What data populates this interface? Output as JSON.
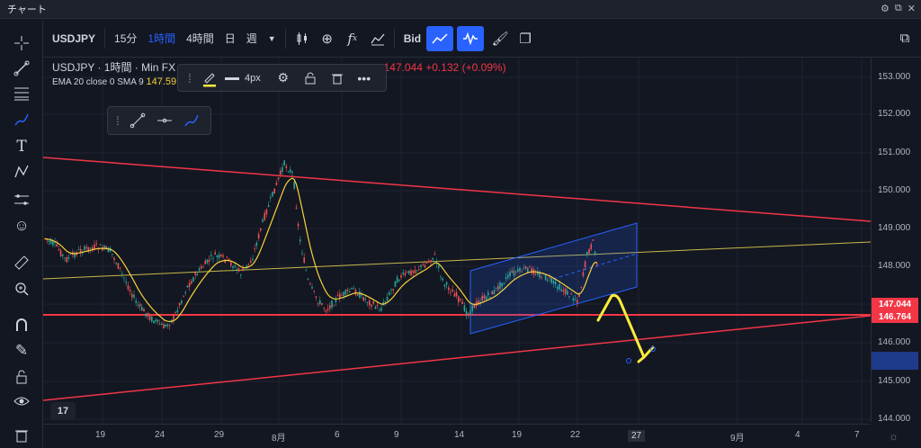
{
  "window": {
    "title": "チャート"
  },
  "toolbar": {
    "symbol": "USDJPY",
    "intervals": [
      "15分",
      "1時間",
      "4時間",
      "日",
      "週"
    ],
    "active_interval_index": 1,
    "price_source": "Bid"
  },
  "legend": {
    "line1": "USDJPY · 1時間 · Min FX",
    "ohlc_change": "147.044 +0.132 (+0.09%)",
    "ema_label": "EMA 20 close 0 SMA 9",
    "ema_value": "147.59"
  },
  "float_toolbar": {
    "width_label": "4px"
  },
  "y_axis": {
    "labels": [
      "153.000",
      "152.000",
      "151.000",
      "150.000",
      "149.000",
      "148.000",
      "147.000",
      "146.000",
      "145.000",
      "144.000"
    ],
    "price_tags": [
      {
        "value": "147.044",
        "color": "#f23645"
      },
      {
        "value": "146.764",
        "color": "#f23645"
      }
    ]
  },
  "x_axis": {
    "labels": [
      "19",
      "24",
      "29",
      "8月",
      "6",
      "9",
      "14",
      "19",
      "22",
      "27",
      "9月",
      "4",
      "7"
    ],
    "highlighted_label": "27"
  },
  "colors": {
    "background": "#131722",
    "accent": "#2962ff",
    "trendline_red": "#f23645",
    "ema_yellow": "#f7d13a",
    "channel_blue": "#2962ff",
    "arrow_yellow": "#ffeb3b"
  },
  "icons": {
    "left": [
      "crosshair-icon",
      "trendline-icon",
      "fib-icon",
      "brush-icon",
      "text-icon",
      "pattern-icon",
      "projection-icon",
      "emoji-icon",
      "ruler-icon",
      "zoom-icon",
      "magnet-icon",
      "lock-drawing-icon",
      "lock-icon",
      "eye-icon",
      "trash-icon"
    ]
  }
}
